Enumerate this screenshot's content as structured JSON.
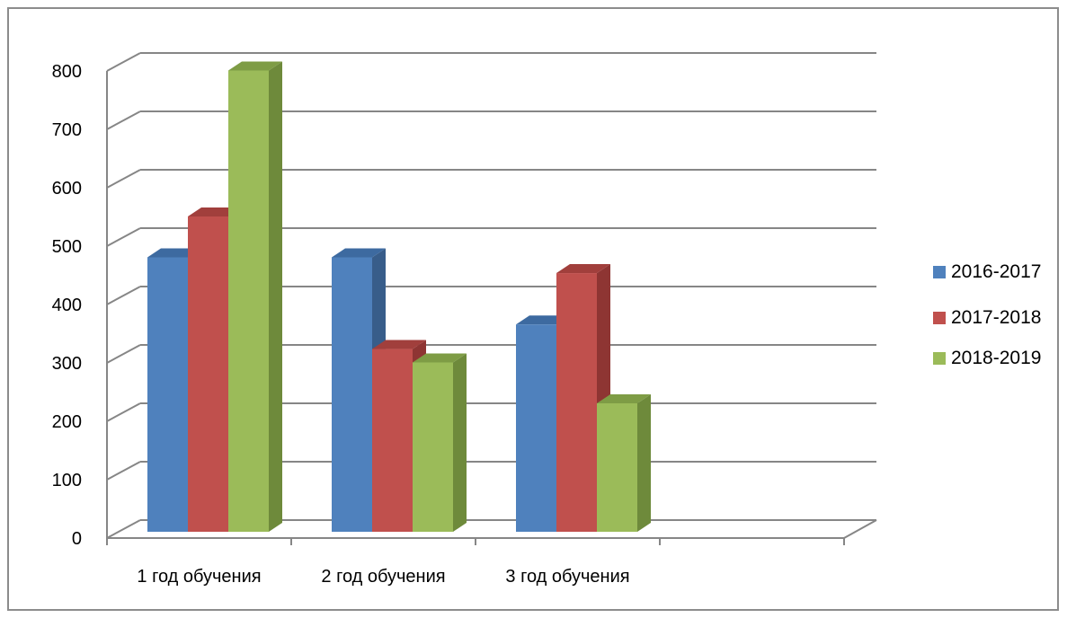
{
  "chart_data": {
    "type": "bar",
    "title": "",
    "xlabel": "",
    "ylabel": "",
    "ylim": [
      0,
      800
    ],
    "yticks": [
      0,
      100,
      200,
      300,
      400,
      500,
      600,
      700,
      800
    ],
    "categories": [
      "1 год обучения",
      "2 год обучения",
      "3 год обучения",
      ""
    ],
    "series": [
      {
        "name": "2016-2017",
        "values": [
          470,
          470,
          355,
          null
        ],
        "color": "#4F81BD",
        "side": "#385D8A",
        "top": "#3D6AA0"
      },
      {
        "name": "2017-2018",
        "values": [
          540,
          313,
          443,
          null
        ],
        "color": "#C0504D",
        "side": "#8E3533",
        "top": "#A13F3C"
      },
      {
        "name": "2018-2019",
        "values": [
          790,
          290,
          220,
          null
        ],
        "color": "#9BBB59",
        "side": "#6E8A3B",
        "top": "#7E9C45"
      }
    ],
    "grid": true,
    "legend_position": "right",
    "style": "3d-clustered-column"
  }
}
